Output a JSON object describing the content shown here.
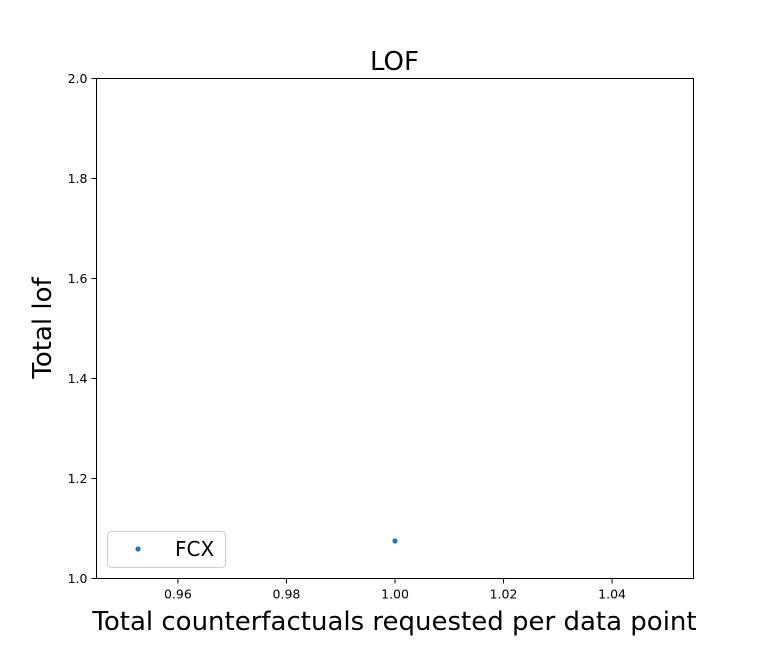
{
  "chart_data": {
    "type": "scatter",
    "title": "LOF",
    "xlabel": "Total counterfactuals requested per data point",
    "ylabel": "Total lof",
    "xlim": [
      0.945,
      1.055
    ],
    "ylim": [
      1.0,
      2.0
    ],
    "xticks": [
      "0.96",
      "0.98",
      "1.00",
      "1.02",
      "1.04"
    ],
    "xtick_values": [
      0.96,
      0.98,
      1.0,
      1.02,
      1.04
    ],
    "yticks": [
      "1.0",
      "1.2",
      "1.4",
      "1.6",
      "1.8",
      "2.0"
    ],
    "ytick_values": [
      1.0,
      1.2,
      1.4,
      1.6,
      1.8,
      2.0
    ],
    "grid": false,
    "legend_position": "lower-left",
    "series": [
      {
        "name": "FCX",
        "color": "#1f77b4",
        "x": [
          1.0
        ],
        "y": [
          1.075
        ]
      }
    ]
  }
}
